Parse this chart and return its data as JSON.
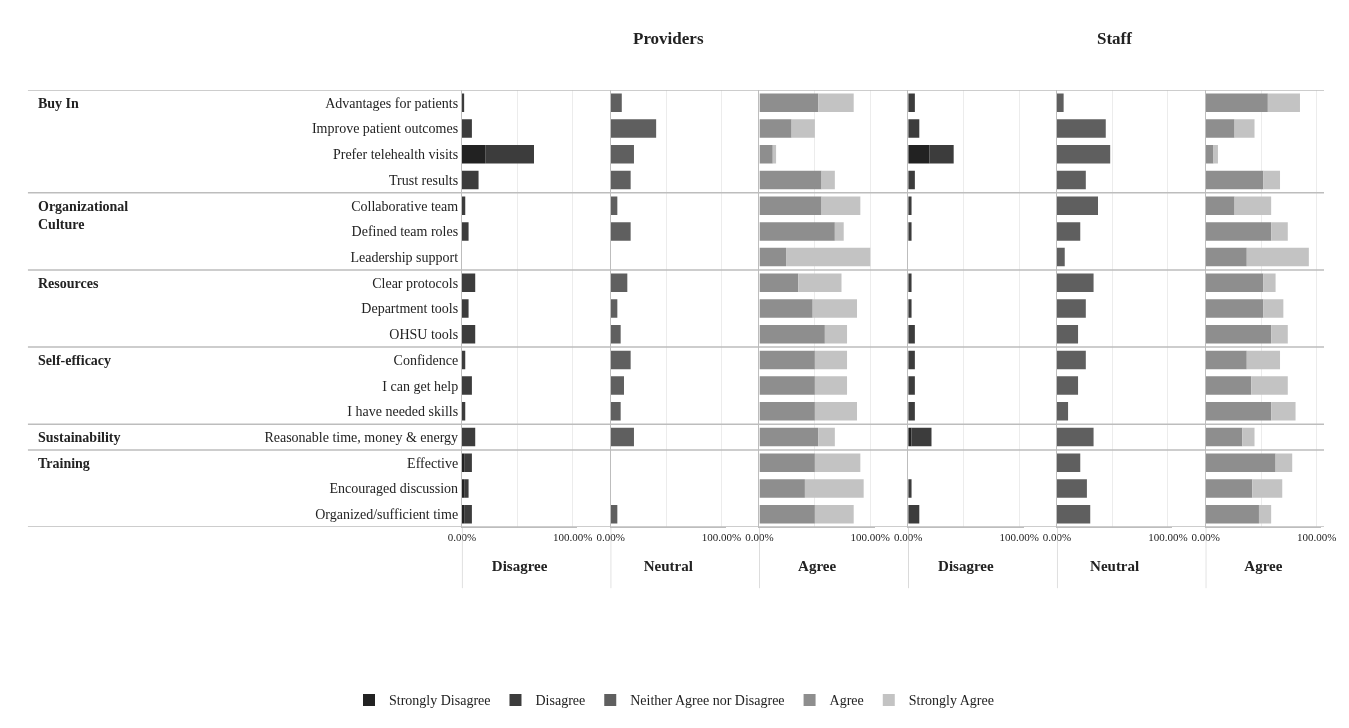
{
  "chart_data": [
    {
      "type": "bar",
      "orientation": "horizontal",
      "stacked": true,
      "xlabel": "Disagree",
      "grid": "x",
      "legend": "bottom",
      "xlim": [
        0,
        104
      ],
      "xticks": [
        {
          "value": 0,
          "label": "0.00%"
        },
        {
          "value": 50,
          "label": null
        },
        {
          "value": 100,
          "label": "100.00%"
        }
      ],
      "categories": [
        "Advantages for patients",
        "Improve patient outcomes",
        "Prefer telehealth visits",
        "Trust results",
        "Collaborative team",
        "Defined team roles",
        "Leadership support",
        "Clear protocols",
        "Department tools",
        "OHSU tools",
        "Confidence",
        "I can get help",
        "I have needed skills",
        "Reasonable time, money & energy",
        "Effective",
        "Encouraged discussion",
        "Organized/sufficient time"
      ],
      "annotations": [
        "Buy In",
        "Organizational Culture",
        "Resources",
        "Self-efficacy",
        "Sustainability",
        "Training"
      ],
      "series": [
        {
          "name": "Strongly Disagree",
          "color": "#222222",
          "values": [
            0,
            0,
            21,
            0,
            0,
            0,
            0,
            0,
            0,
            0,
            0,
            0,
            0,
            0,
            2,
            2,
            2
          ]
        },
        {
          "name": "Disagree",
          "color": "#3c3c3c",
          "values": [
            2,
            9,
            44,
            15,
            3,
            6,
            0,
            12,
            6,
            12,
            3,
            9,
            3,
            12,
            7,
            4,
            7
          ]
        }
      ]
    },
    {
      "type": "bar",
      "orientation": "horizontal",
      "stacked": true,
      "title": "Providers",
      "xlabel": "Neutral",
      "grid": "x",
      "tick_labels": "x",
      "xlim": [
        0,
        104
      ],
      "xticks": [
        {
          "value": 0,
          "label": "0.00%"
        },
        {
          "value": 50,
          "label": null
        },
        {
          "value": 100,
          "label": "100.00%"
        }
      ],
      "categories": [
        "Advantages for patients",
        "Improve patient outcomes",
        "Prefer telehealth visits",
        "Trust results",
        "Collaborative team",
        "Defined team roles",
        "Leadership support",
        "Clear protocols",
        "Department tools",
        "OHSU tools",
        "Confidence",
        "I can get help",
        "I have needed skills",
        "Reasonable time, money & energy",
        "Effective",
        "Encouraged discussion",
        "Organized/sufficient time"
      ],
      "legend": "bottom",
      "series": [
        {
          "name": "Neither Agree nor Disagree",
          "color": "#5f5f5f",
          "values": [
            10,
            41,
            21,
            18,
            6,
            18,
            0,
            15,
            6,
            9,
            18,
            12,
            9,
            21,
            0,
            0,
            6
          ]
        }
      ]
    },
    {
      "type": "bar",
      "orientation": "horizontal",
      "stacked": true,
      "xlabel": "Agree",
      "grid": "x",
      "tick_labels": "x",
      "xlim": [
        0,
        104
      ],
      "xticks": [
        {
          "value": 0,
          "label": "0.00%"
        },
        {
          "value": 50,
          "label": null
        },
        {
          "value": 100,
          "label": "100.00%"
        }
      ],
      "categories": [
        "Advantages for patients",
        "Improve patient outcomes",
        "Prefer telehealth visits",
        "Trust results",
        "Collaborative team",
        "Defined team roles",
        "Leadership support",
        "Clear protocols",
        "Department tools",
        "OHSU tools",
        "Confidence",
        "I can get help",
        "I have needed skills",
        "Reasonable time, money & energy",
        "Effective",
        "Encouraged discussion",
        "Organized/sufficient time"
      ],
      "legend": "bottom",
      "series": [
        {
          "name": "Agree",
          "color": "#8e8e8e",
          "values": [
            53,
            29,
            12,
            56,
            56,
            68,
            24,
            35,
            48,
            59,
            50,
            50,
            50,
            53,
            50,
            41,
            50
          ]
        },
        {
          "name": "Strongly Agree",
          "color": "#c3c3c3",
          "values": [
            32,
            21,
            3,
            12,
            35,
            8,
            76,
            39,
            40,
            20,
            29,
            29,
            38,
            15,
            41,
            53,
            35
          ]
        }
      ]
    },
    {
      "type": "bar",
      "orientation": "horizontal",
      "stacked": true,
      "xlabel": "Disagree",
      "grid": "x",
      "tick_labels": "x",
      "xlim": [
        0,
        104
      ],
      "xticks": [
        {
          "value": 0,
          "label": "0.00%"
        },
        {
          "value": 50,
          "label": null
        },
        {
          "value": 100,
          "label": "100.00%"
        }
      ],
      "categories": [
        "Advantages for patients",
        "Improve patient outcomes",
        "Prefer telehealth visits",
        "Trust results",
        "Collaborative team",
        "Defined team roles",
        "Leadership support",
        "Clear protocols",
        "Department tools",
        "OHSU tools",
        "Confidence",
        "I can get help",
        "I have needed skills",
        "Reasonable time, money & energy",
        "Effective",
        "Encouraged discussion",
        "Organized/sufficient time"
      ],
      "series": [
        {
          "color": "#222222",
          "values": [
            0,
            0,
            19,
            0,
            0,
            0,
            0,
            0,
            0,
            0,
            0,
            0,
            0,
            3,
            0,
            0,
            0
          ]
        },
        {
          "color": "#3c3c3c",
          "values": [
            6,
            10,
            22,
            6,
            3,
            3,
            0,
            3,
            3,
            6,
            6,
            6,
            6,
            18,
            0,
            3,
            10
          ]
        }
      ]
    },
    {
      "type": "bar",
      "orientation": "horizontal",
      "stacked": true,
      "title": "Staff",
      "xlabel": "Neutral",
      "grid": "x",
      "tick_labels": "x",
      "xlim": [
        0,
        104
      ],
      "xticks": [
        {
          "value": 0,
          "label": "0.00%"
        },
        {
          "value": 50,
          "label": null
        },
        {
          "value": 100,
          "label": "100.00%"
        }
      ],
      "categories": [
        "Advantages for patients",
        "Improve patient outcomes",
        "Prefer telehealth visits",
        "Trust results",
        "Collaborative team",
        "Defined team roles",
        "Leadership support",
        "Clear protocols",
        "Department tools",
        "OHSU tools",
        "Confidence",
        "I can get help",
        "I have needed skills",
        "Reasonable time, money & energy",
        "Effective",
        "Encouraged discussion",
        "Organized/sufficient time"
      ],
      "series": [
        {
          "color": "#5f5f5f",
          "values": [
            6,
            44,
            48,
            26,
            37,
            21,
            7,
            33,
            26,
            19,
            26,
            19,
            10,
            33,
            21,
            27,
            30
          ]
        }
      ]
    },
    {
      "type": "bar",
      "orientation": "horizontal",
      "stacked": true,
      "xlabel": "Agree",
      "grid": "x",
      "tick_labels": "x",
      "xlim": [
        0,
        104
      ],
      "xticks": [
        {
          "value": 0,
          "label": "0.00%"
        },
        {
          "value": 50,
          "label": null
        },
        {
          "value": 100,
          "label": "100.00%"
        }
      ],
      "categories": [
        "Advantages for patients",
        "Improve patient outcomes",
        "Prefer telehealth visits",
        "Trust results",
        "Collaborative team",
        "Defined team roles",
        "Leadership support",
        "Clear protocols",
        "Department tools",
        "OHSU tools",
        "Confidence",
        "I can get help",
        "I have needed skills",
        "Reasonable time, money & energy",
        "Effective",
        "Encouraged discussion",
        "Organized/sufficient time"
      ],
      "series": [
        {
          "color": "#8e8e8e",
          "values": [
            56,
            26,
            7,
            52,
            26,
            59,
            37,
            52,
            52,
            59,
            37,
            41,
            59,
            33,
            63,
            42,
            48
          ]
        },
        {
          "color": "#c3c3c3",
          "values": [
            29,
            18,
            4,
            15,
            33,
            15,
            56,
            11,
            18,
            15,
            30,
            33,
            22,
            11,
            15,
            27,
            11
          ]
        }
      ]
    }
  ]
}
